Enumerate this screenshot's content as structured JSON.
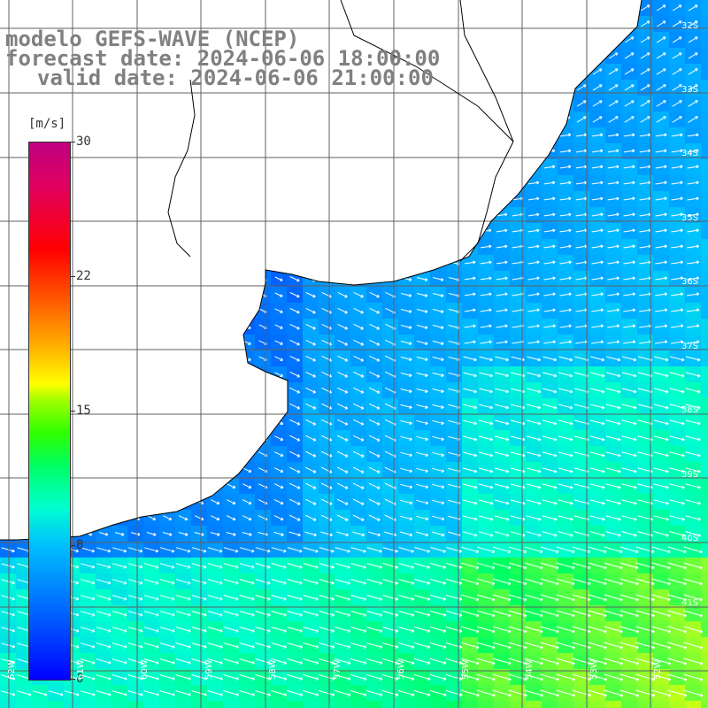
{
  "title": {
    "line1": "modelo GEFS-WAVE (NCEP)",
    "line2": "forecast date: 2024-06-06 18:00:00",
    "line3": "valid date: 2024-06-06 21:00:00"
  },
  "colorbar": {
    "unit": "[m/s]",
    "ticks": [
      "30",
      "22",
      "15",
      "8",
      "0"
    ],
    "tick_values": [
      30,
      22,
      15,
      8,
      0
    ],
    "range": [
      0,
      30
    ]
  },
  "lat_labels": [
    "32S",
    "33S",
    "34S",
    "35S",
    "36S",
    "37S",
    "38S",
    "39S",
    "40S",
    "41S"
  ],
  "lon_labels": [
    "62W",
    "61W",
    "60W",
    "59W",
    "58W",
    "57W",
    "56W",
    "55W",
    "54W",
    "53W",
    "52W"
  ],
  "colors": {
    "land": "#ffffff",
    "coast": "#000000",
    "grid": "#606060",
    "arrow": "#ffffff",
    "title": "#808080"
  }
}
